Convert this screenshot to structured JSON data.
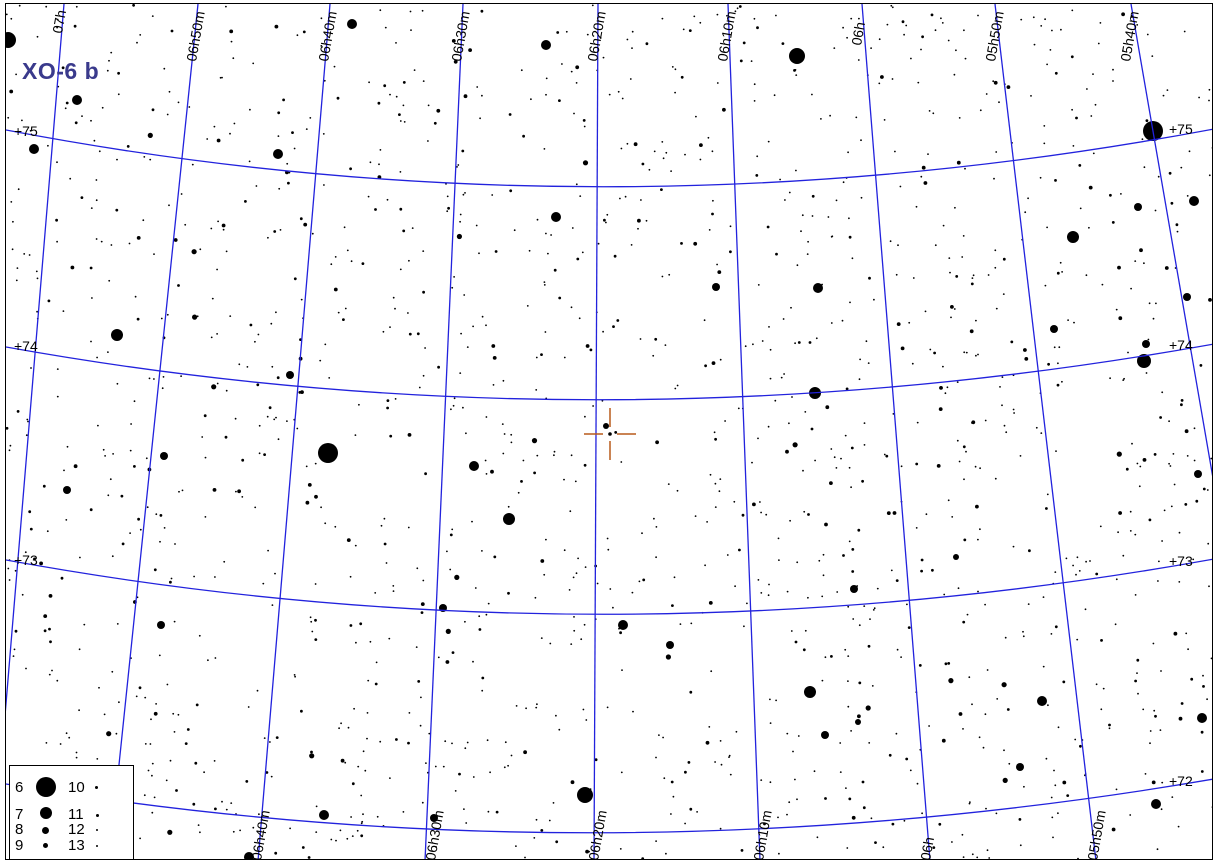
{
  "map": {
    "target_name": "XO-6 b",
    "ra_labels_top": [
      "07h",
      "06h50m",
      "06h40m",
      "06h30m",
      "06h20m",
      "06h10m",
      "06h",
      "05h50m",
      "05h40m"
    ],
    "ra_labels_bottom": [
      "06h40m",
      "06h30m",
      "06h20m",
      "06h10m",
      "06h",
      "05h50m"
    ],
    "dec_labels": [
      "+75",
      "+74",
      "+73",
      "+72"
    ],
    "grid_color": "#2222dd",
    "reticle_color": "#b85a1a",
    "star_color": "#000000"
  },
  "legend": {
    "entries": [
      {
        "mag": "6"
      },
      {
        "mag": "7"
      },
      {
        "mag": "8"
      },
      {
        "mag": "9"
      },
      {
        "mag": "10"
      },
      {
        "mag": "11"
      },
      {
        "mag": "12"
      },
      {
        "mag": "13"
      }
    ]
  }
}
